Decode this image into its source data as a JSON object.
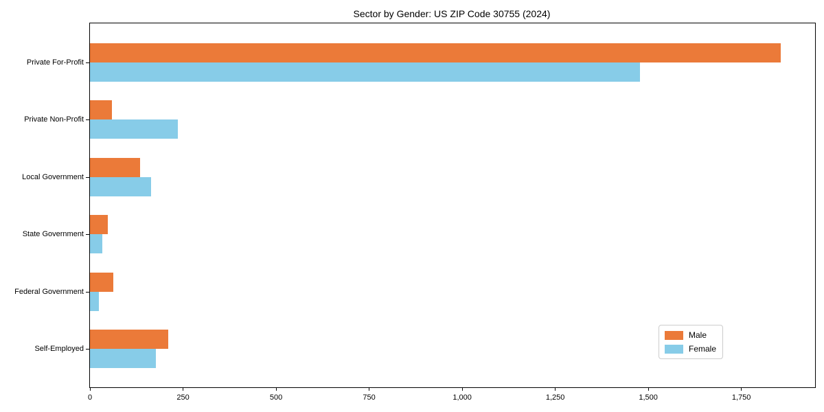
{
  "chart_data": {
    "type": "bar",
    "orientation": "horizontal",
    "title": "Sector by Gender: US ZIP Code 30755 (2024)",
    "categories": [
      "Private For-Profit",
      "Private Non-Profit",
      "Local Government",
      "State Government",
      "Federal Government",
      "Self-Employed"
    ],
    "series": [
      {
        "name": "Male",
        "color": "#EB7A39",
        "values": [
          1855,
          59,
          135,
          47,
          63,
          210
        ]
      },
      {
        "name": "Female",
        "color": "#87CCE8",
        "values": [
          1477,
          236,
          165,
          34,
          23,
          177
        ]
      }
    ],
    "xlabel": "",
    "ylabel": "",
    "xlim": [
      0,
      1948
    ],
    "xticks": [
      0,
      250,
      500,
      750,
      1000,
      1250,
      1500,
      1750
    ],
    "xtick_labels": [
      "0",
      "250",
      "500",
      "750",
      "1,000",
      "1,250",
      "1,500",
      "1,750"
    ],
    "grid": false,
    "legend": {
      "position": "lower-right",
      "entries": [
        "Male",
        "Female"
      ]
    },
    "axis_color": "#000000",
    "background": "#ffffff"
  }
}
